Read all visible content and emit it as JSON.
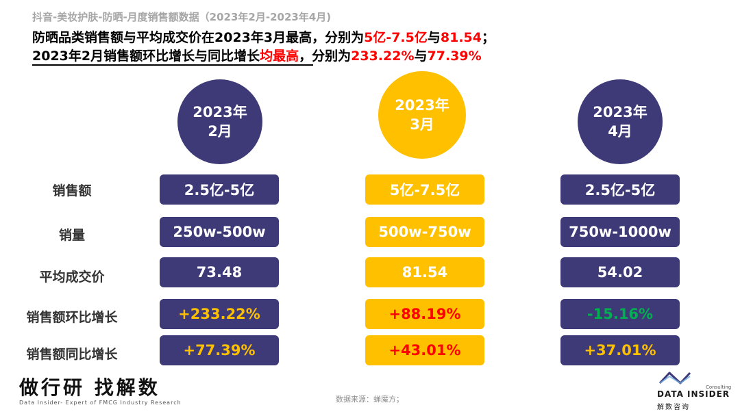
{
  "header": {
    "subtitle": "抖音-美妆护肤-防晒-月度销售额数据（2023年2月-2023年4月)",
    "line1": {
      "p1": "防晒品类销售额与平均成交价在2023年3月最高，分别为",
      "r1": "5亿-7.5亿",
      "p2": "与",
      "r2": "81.54",
      "p3": "；"
    },
    "line2": {
      "p1": "2023年2月销售额环比增长与同比增长",
      "r1": "均最高",
      "p2": "，分别为",
      "r2": "233.22%",
      "p3": "与",
      "r3": "77.39%"
    }
  },
  "months": [
    {
      "year": "2023年",
      "month": "2月"
    },
    {
      "year": "2023年",
      "month": "3月"
    },
    {
      "year": "2023年",
      "month": "4月"
    }
  ],
  "rows": [
    {
      "label": "销售额",
      "values": [
        "2.5亿-5亿",
        "5亿-7.5亿",
        "2.5亿-5亿"
      ]
    },
    {
      "label": "销量",
      "values": [
        "250w-500w",
        "500w-750w",
        "750w-1000w"
      ]
    },
    {
      "label": "平均成交价",
      "values": [
        "73.48",
        "81.54",
        "54.02"
      ]
    },
    {
      "label": "销售额环比增长",
      "values": [
        "+233.22%",
        "+88.19%",
        "-15.16%"
      ]
    },
    {
      "label": "销售额同比增长",
      "values": [
        "+77.39%",
        "+43.01%",
        "+37.01%"
      ]
    }
  ],
  "colors": {
    "navy": "#3e3a77",
    "gold": "#ffc000",
    "red": "#ff0000",
    "green": "#00b050"
  },
  "footer": {
    "brand_cn": "做行研 找解数",
    "brand_en": "Data Insider- Expert of FMCG Industry Research",
    "source": "数据来源：蝉魔方；",
    "logo_sub": "Consulting",
    "logo_name": "DATA INSIDER",
    "logo_cn": "解数咨询"
  }
}
